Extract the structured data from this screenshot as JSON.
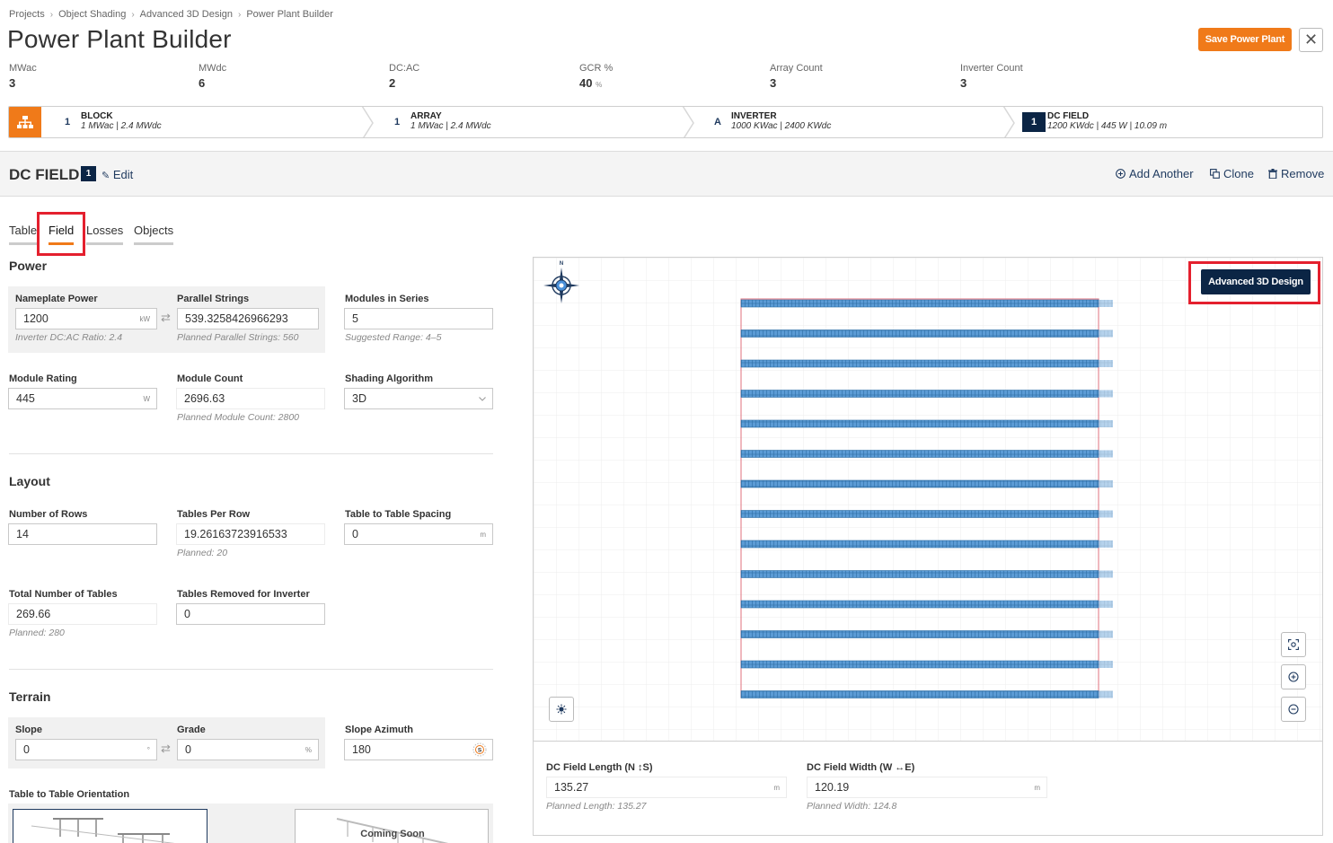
{
  "breadcrumb": [
    "Projects",
    "Object Shading",
    "Advanced 3D Design",
    "Power Plant Builder"
  ],
  "page_title": "Power Plant Builder",
  "header": {
    "save_label": "Save Power Plant",
    "close_symbol": "✕"
  },
  "stats": [
    {
      "label": "MWac",
      "value": "3",
      "unit": ""
    },
    {
      "label": "MWdc",
      "value": "6",
      "unit": ""
    },
    {
      "label": "DC:AC",
      "value": "2",
      "unit": ""
    },
    {
      "label": "GCR %",
      "value": "40",
      "unit": "%"
    },
    {
      "label": "Array Count",
      "value": "3",
      "unit": ""
    },
    {
      "label": "Inverter Count",
      "value": "3",
      "unit": ""
    }
  ],
  "steps": [
    {
      "badge": "1",
      "title": "BLOCK",
      "sub": "1 MWac | 2.4 MWdc"
    },
    {
      "badge": "1",
      "title": "ARRAY",
      "sub": "1 MWac | 2.4 MWdc"
    },
    {
      "badge": "A",
      "title": "INVERTER",
      "sub": "1000 KWac | 2400 KWdc"
    },
    {
      "badge": "1",
      "title": "DC FIELD",
      "sub": "1200 KWdc | 445 W | 10.09 m"
    }
  ],
  "section": {
    "title": "DC FIELD",
    "badge": "1",
    "edit": "Edit",
    "actions": {
      "add": "Add Another",
      "clone": "Clone",
      "remove": "Remove"
    }
  },
  "tabs": [
    "Table",
    "Field",
    "Losses",
    "Objects"
  ],
  "active_tab": "Field",
  "power": {
    "title": "Power",
    "nameplate": {
      "label": "Nameplate Power",
      "value": "1200",
      "unit": "kW",
      "hint": "Inverter DC:AC Ratio: 2.4"
    },
    "parallel": {
      "label": "Parallel Strings",
      "value": "539.3258426966293",
      "hint": "Planned Parallel Strings: 560"
    },
    "series": {
      "label": "Modules in Series",
      "value": "5",
      "hint": "Suggested Range: 4–5"
    },
    "rating": {
      "label": "Module Rating",
      "value": "445",
      "unit": "W"
    },
    "count": {
      "label": "Module Count",
      "value": "2696.63",
      "hint": "Planned Module Count: 2800"
    },
    "shading": {
      "label": "Shading Algorithm",
      "value": "3D"
    }
  },
  "layout": {
    "title": "Layout",
    "rows": {
      "label": "Number of Rows",
      "value": "14"
    },
    "tables_per_row": {
      "label": "Tables Per Row",
      "value": "19.26163723916533",
      "hint": "Planned: 20"
    },
    "spacing": {
      "label": "Table to Table Spacing",
      "value": "0",
      "unit": "m"
    },
    "total_tables": {
      "label": "Total Number of Tables",
      "value": "269.66",
      "hint": "Planned: 280"
    },
    "removed": {
      "label": "Tables Removed for Inverter",
      "value": "0"
    }
  },
  "terrain": {
    "title": "Terrain",
    "slope": {
      "label": "Slope",
      "value": "0",
      "unit": "°"
    },
    "grade": {
      "label": "Grade",
      "value": "0",
      "unit": "%"
    },
    "azimuth": {
      "label": "Slope Azimuth",
      "value": "180",
      "compass": "S"
    },
    "orientation_label": "Table to Table Orientation",
    "coming_soon": "Coming Soon"
  },
  "map": {
    "compass_letter": "N",
    "advanced_button": "Advanced 3D Design",
    "row_count": 14,
    "row_color": "#5b9bd5"
  },
  "dimensions": {
    "length": {
      "label": "DC Field Length (N ↕S)",
      "value": "135.27",
      "unit": "m",
      "hint": "Planned Length: 135.27"
    },
    "width": {
      "label": "DC Field Width (W ↔E)",
      "value": "120.19",
      "unit": "m",
      "hint": "Planned Width: 124.8"
    }
  },
  "colors": {
    "accent": "#f07a19",
    "navy": "#0b2545",
    "highlight": "#e4202e"
  }
}
